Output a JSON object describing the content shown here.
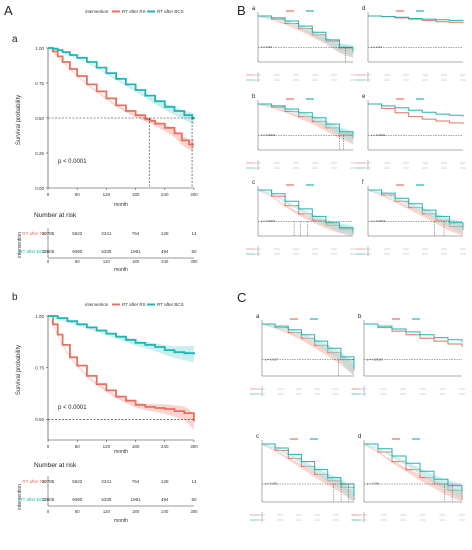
{
  "figure": {
    "panel_letters": [
      "A",
      "B",
      "C"
    ],
    "colors": {
      "rs": "#e8705f",
      "rs_band": "#f5b1a7",
      "bcs": "#1fb5b3",
      "bcs_band": "#9fe0dc",
      "axis": "#333333",
      "dash": "#222222"
    }
  },
  "chart_data": [
    {
      "id": "A-a",
      "type": "line",
      "panel_label": "a",
      "legend": {
        "title": "intervention",
        "items": [
          "RT after RS",
          "RT after BCS"
        ]
      },
      "ylabel": "Survival probability",
      "xlabel": "month",
      "x_ticks": [
        0,
        60,
        120,
        180,
        240,
        300
      ],
      "y_ticks": [
        "0.00",
        "0.25",
        "0.50",
        "0.75",
        "1.00"
      ],
      "xlim": [
        0,
        300
      ],
      "ylim": [
        0,
        1
      ],
      "pvalue": "p < 0.0001",
      "median_lines": [
        208,
        296
      ],
      "series": [
        {
          "name": "RT after RS",
          "color_key": "rs",
          "x": [
            0,
            10,
            20,
            30,
            45,
            60,
            80,
            100,
            120,
            140,
            160,
            180,
            200,
            210,
            220,
            240,
            260,
            275,
            290,
            300
          ],
          "y": [
            1.0,
            0.975,
            0.94,
            0.9,
            0.85,
            0.8,
            0.74,
            0.69,
            0.64,
            0.59,
            0.55,
            0.52,
            0.49,
            0.48,
            0.46,
            0.43,
            0.39,
            0.34,
            0.31,
            0.31
          ]
        },
        {
          "name": "RT after BCS",
          "color_key": "bcs",
          "x": [
            0,
            10,
            20,
            30,
            45,
            60,
            80,
            100,
            120,
            140,
            160,
            180,
            200,
            220,
            240,
            260,
            280,
            296,
            300
          ],
          "y": [
            1.0,
            0.995,
            0.985,
            0.97,
            0.95,
            0.93,
            0.9,
            0.86,
            0.82,
            0.78,
            0.74,
            0.7,
            0.66,
            0.62,
            0.58,
            0.55,
            0.52,
            0.5,
            0.49
          ]
        }
      ],
      "risk_table": {
        "title": "Number at risk",
        "group_title": "intervention",
        "row_labels": [
          "RT after RS",
          "RT after BCS"
        ],
        "rows": [
          [
            "10785",
            "5622",
            "2341",
            "764",
            "128",
            "14"
          ],
          [
            "13805",
            "9390",
            "5335",
            "1991",
            "494",
            "50"
          ]
        ],
        "xlabel": "month",
        "x_ticks": [
          0,
          60,
          120,
          180,
          240,
          300
        ]
      }
    },
    {
      "id": "A-b",
      "type": "line",
      "panel_label": "b",
      "legend": {
        "title": "intervention",
        "items": [
          "RT after RS",
          "RT after BCS"
        ]
      },
      "ylabel": "Survival probability",
      "xlabel": "month",
      "x_ticks": [
        0,
        60,
        120,
        180,
        240,
        300
      ],
      "y_ticks": [
        "0.50",
        "0.75",
        "1.00"
      ],
      "xlim": [
        0,
        300
      ],
      "ylim": [
        0.4,
        1
      ],
      "pvalue": "p < 0.0001",
      "median_lines": [],
      "series": [
        {
          "name": "RT after RS",
          "color_key": "rs",
          "x": [
            0,
            10,
            20,
            30,
            45,
            60,
            80,
            100,
            120,
            140,
            160,
            180,
            200,
            220,
            240,
            260,
            280,
            300
          ],
          "y": [
            1.0,
            0.96,
            0.91,
            0.86,
            0.8,
            0.76,
            0.71,
            0.67,
            0.64,
            0.61,
            0.59,
            0.57,
            0.56,
            0.555,
            0.55,
            0.54,
            0.53,
            0.49
          ]
        },
        {
          "name": "RT after BCS",
          "color_key": "bcs",
          "x": [
            0,
            20,
            40,
            60,
            80,
            100,
            120,
            140,
            160,
            180,
            200,
            220,
            240,
            260,
            280,
            300
          ],
          "y": [
            1.0,
            0.99,
            0.975,
            0.96,
            0.945,
            0.93,
            0.915,
            0.9,
            0.885,
            0.87,
            0.86,
            0.85,
            0.835,
            0.825,
            0.82,
            0.815
          ]
        }
      ],
      "risk_table": {
        "title": "Number at risk",
        "group_title": "intervention",
        "row_labels": [
          "RT after RS",
          "RT after BCS"
        ],
        "rows": [
          [
            "10785",
            "5622",
            "2341",
            "764",
            "128",
            "14"
          ],
          [
            "13805",
            "9390",
            "5335",
            "1991",
            "494",
            "50"
          ]
        ],
        "xlabel": "month",
        "x_ticks": [
          0,
          60,
          120,
          180,
          240,
          300
        ]
      }
    }
  ],
  "mini_panels": [
    {
      "group": "B",
      "label": "a",
      "pvalue": "p = 0.16",
      "rs": [
        1.0,
        0.95,
        0.88,
        0.8,
        0.7,
        0.6,
        0.48,
        0.42
      ],
      "bcs": [
        1.0,
        0.97,
        0.92,
        0.84,
        0.74,
        0.62,
        0.5,
        0.45
      ],
      "dash_x": [
        0.92
      ],
      "band": true
    },
    {
      "group": "B",
      "label": "d",
      "pvalue": "p = 0.14",
      "rs": [
        1.0,
        0.99,
        0.97,
        0.95,
        0.93,
        0.91,
        0.9,
        0.89
      ],
      "bcs": [
        1.0,
        0.99,
        0.98,
        0.96,
        0.95,
        0.94,
        0.93,
        0.92
      ],
      "dash_x": [],
      "band": false
    },
    {
      "group": "B",
      "label": "b",
      "pvalue": "p = 0.0001",
      "rs": [
        1.0,
        0.95,
        0.88,
        0.8,
        0.72,
        0.62,
        0.52,
        0.45
      ],
      "bcs": [
        1.0,
        0.97,
        0.92,
        0.86,
        0.78,
        0.68,
        0.56,
        0.48
      ],
      "dash_x": [
        0.86,
        0.9
      ],
      "band": true
    },
    {
      "group": "B",
      "label": "e",
      "pvalue": "p < 0.0001",
      "rs": [
        1.0,
        0.93,
        0.86,
        0.8,
        0.76,
        0.73,
        0.7,
        0.68
      ],
      "bcs": [
        1.0,
        0.97,
        0.94,
        0.9,
        0.87,
        0.84,
        0.82,
        0.8
      ],
      "dash_x": [],
      "band": false
    },
    {
      "group": "B",
      "label": "c",
      "pvalue": "p = 0.0007",
      "rs": [
        1.0,
        0.9,
        0.75,
        0.62,
        0.52,
        0.44,
        0.38,
        0.3
      ],
      "bcs": [
        1.0,
        0.94,
        0.82,
        0.7,
        0.58,
        0.48,
        0.4,
        0.34
      ],
      "dash_x": [
        0.38,
        0.45,
        0.52
      ],
      "band": true
    },
    {
      "group": "B",
      "label": "f",
      "pvalue": "p = 0.0073",
      "rs": [
        1.0,
        0.92,
        0.82,
        0.72,
        0.62,
        0.52,
        0.42,
        0.36
      ],
      "bcs": [
        1.0,
        0.95,
        0.87,
        0.78,
        0.68,
        0.58,
        0.48,
        0.4
      ],
      "dash_x": [
        0.7,
        0.8
      ],
      "band": true
    },
    {
      "group": "C",
      "label": "a",
      "pvalue": "p = 0.017",
      "rs": [
        1.0,
        0.95,
        0.88,
        0.8,
        0.7,
        0.6,
        0.5,
        0.35
      ],
      "bcs": [
        1.0,
        0.97,
        0.92,
        0.85,
        0.76,
        0.66,
        0.54,
        0.38
      ],
      "dash_x": [
        0.83
      ],
      "band": true
    },
    {
      "group": "C",
      "label": "b",
      "pvalue": "p = 0.00016",
      "rs": [
        1.0,
        0.95,
        0.9,
        0.85,
        0.8,
        0.76,
        0.72,
        0.68
      ],
      "bcs": [
        1.0,
        0.97,
        0.93,
        0.89,
        0.85,
        0.81,
        0.78,
        0.75
      ],
      "dash_x": [],
      "band": false
    },
    {
      "group": "C",
      "label": "c",
      "pvalue": "p = 0.061",
      "rs": [
        1.0,
        0.92,
        0.82,
        0.72,
        0.62,
        0.54,
        0.46,
        0.3
      ],
      "bcs": [
        1.0,
        0.95,
        0.87,
        0.78,
        0.68,
        0.58,
        0.5,
        0.35
      ],
      "dash_x": [
        0.78,
        0.86,
        0.94
      ],
      "band": true
    },
    {
      "group": "C",
      "label": "d",
      "pvalue": "p < 0.001",
      "rs": [
        1.0,
        0.9,
        0.78,
        0.68,
        0.58,
        0.5,
        0.42,
        0.3
      ],
      "bcs": [
        1.0,
        0.94,
        0.85,
        0.76,
        0.66,
        0.56,
        0.48,
        0.4
      ],
      "dash_x": [
        0.82,
        0.9
      ],
      "band": true
    }
  ]
}
